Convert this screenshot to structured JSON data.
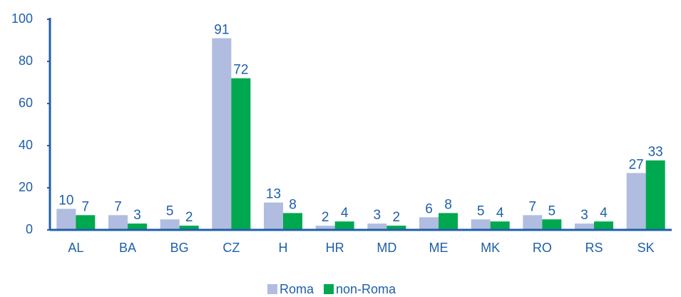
{
  "chart_data": {
    "type": "bar",
    "categories": [
      "AL",
      "BA",
      "BG",
      "CZ",
      "H",
      "HR",
      "MD",
      "ME",
      "MK",
      "RO",
      "RS",
      "SK"
    ],
    "series": [
      {
        "name": "Roma",
        "color": "#b0bde0",
        "values": [
          10,
          7,
          5,
          91,
          13,
          2,
          3,
          6,
          5,
          7,
          3,
          27
        ]
      },
      {
        "name": "non-Roma",
        "color": "#00a84f",
        "values": [
          7,
          3,
          2,
          72,
          8,
          4,
          2,
          8,
          4,
          5,
          4,
          33
        ]
      }
    ],
    "ylim": [
      0,
      100
    ],
    "yticks": [
      0,
      20,
      40,
      60,
      80,
      100
    ],
    "grid": false,
    "legend": "bottom"
  }
}
